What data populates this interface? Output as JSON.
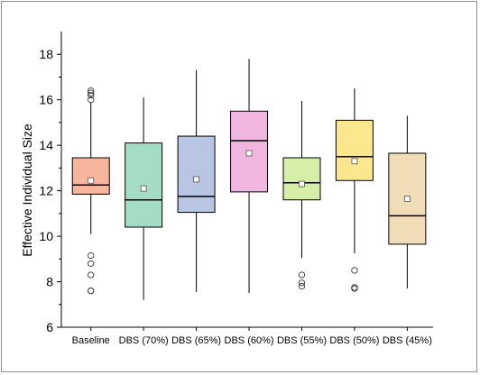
{
  "chart_data": {
    "type": "box",
    "title": "",
    "xlabel": "",
    "ylabel": "Effective Individual Size",
    "ylim": [
      6,
      19
    ],
    "yticks": [
      6,
      8,
      10,
      12,
      14,
      16,
      18
    ],
    "grid": false,
    "legend": "none",
    "series": [
      {
        "category": "Baseline",
        "color": "#f7b59b",
        "whisker_low": 10.1,
        "q1": 11.85,
        "median": 12.25,
        "q3": 13.45,
        "whisker_high": 15.9,
        "mean": 12.45,
        "outliers": [
          16.4,
          16.3,
          16.2,
          16.0,
          9.15,
          8.8,
          8.3,
          7.6,
          7.6
        ]
      },
      {
        "category": "DBS (70%)",
        "color": "#a5dcc6",
        "whisker_low": 7.2,
        "q1": 10.4,
        "median": 11.6,
        "q3": 14.1,
        "whisker_high": 16.1,
        "mean": 12.1,
        "outliers": []
      },
      {
        "category": "DBS (65%)",
        "color": "#b9c6e3",
        "whisker_low": 7.55,
        "q1": 11.05,
        "median": 11.75,
        "q3": 14.4,
        "whisker_high": 17.3,
        "mean": 12.5,
        "outliers": []
      },
      {
        "category": "DBS (60%)",
        "color": "#f0b7de",
        "whisker_low": 7.5,
        "q1": 11.95,
        "median": 14.2,
        "q3": 15.5,
        "whisker_high": 17.8,
        "mean": 13.65,
        "outliers": []
      },
      {
        "category": "DBS (55%)",
        "color": "#d5efa8",
        "whisker_low": 9.05,
        "q1": 11.6,
        "median": 12.35,
        "q3": 13.45,
        "whisker_high": 15.95,
        "mean": 12.3,
        "outliers": [
          8.3,
          7.95,
          7.8
        ]
      },
      {
        "category": "DBS (50%)",
        "color": "#fbe88e",
        "whisker_low": 9.25,
        "q1": 12.45,
        "median": 13.5,
        "q3": 15.1,
        "whisker_high": 16.5,
        "mean": 13.3,
        "outliers": [
          8.5,
          7.75,
          7.7
        ]
      },
      {
        "category": "DBS (45%)",
        "color": "#f1dcb8",
        "whisker_low": 7.7,
        "q1": 9.65,
        "median": 10.9,
        "q3": 13.65,
        "whisker_high": 15.3,
        "mean": 11.65,
        "outliers": []
      }
    ]
  }
}
